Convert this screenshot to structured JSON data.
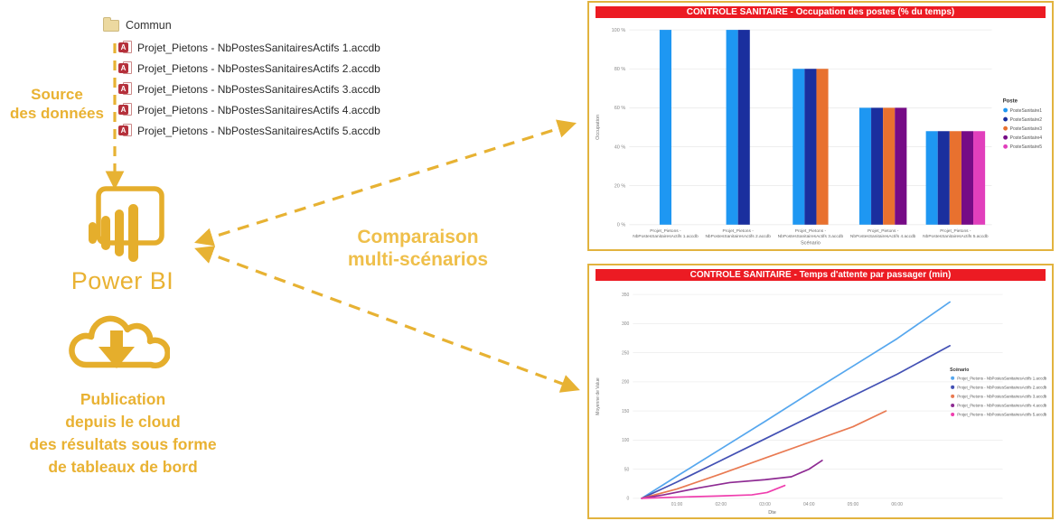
{
  "accent_color": "#E9B233",
  "title_bar_color": "#EC1B23",
  "diagram": {
    "source_label_lines": [
      "Source",
      "des données"
    ],
    "folder_name": "Commun",
    "files": [
      "Projet_Pietons - NbPostesSanitairesActifs 1.accdb",
      "Projet_Pietons - NbPostesSanitairesActifs 2.accdb",
      "Projet_Pietons - NbPostesSanitairesActifs 3.accdb",
      "Projet_Pietons - NbPostesSanitairesActifs 4.accdb",
      "Projet_Pietons - NbPostesSanitairesActifs 5.accdb"
    ],
    "power_bi_label": "Power BI",
    "comparison_lines": [
      "Comparaison",
      "multi-scénarios"
    ],
    "publication_lines": [
      "Publication",
      "depuis le cloud",
      "des résultats sous forme",
      "de tableaux de bord"
    ]
  },
  "chart_data": [
    {
      "type": "bar",
      "title": "CONTROLE SANITAIRE - Occupation des postes (% du temps)",
      "xlabel": "Scénario",
      "ylabel": "Occupation",
      "ylim": [
        0,
        100
      ],
      "ytick_values": [
        0,
        20,
        40,
        60,
        80,
        100
      ],
      "ytick_labels": [
        "0 %",
        "20 %",
        "40 %",
        "60 %",
        "80 %",
        "100 %"
      ],
      "grid": true,
      "legend_position": "right",
      "legend_title": "Poste",
      "categories": [
        [
          "Projet_Pietons -",
          "NbPostesSanitairesActifs 1.accdb"
        ],
        [
          "Projet_Pietons -",
          "NbPostesSanitairesActifs 2.accdb"
        ],
        [
          "Projet_Pietons -",
          "NbPostesSanitairesActifs 3.accdb"
        ],
        [
          "Projet_Pietons -",
          "NbPostesSanitairesActifs 4.accdb"
        ],
        [
          "Projet_Pietons -",
          "NbPostesSanitairesActifs 5.accdb"
        ]
      ],
      "series": [
        {
          "name": "PosteSanitaire1",
          "color": "#1E97F2",
          "values": [
            100,
            100,
            80,
            60,
            48
          ]
        },
        {
          "name": "PosteSanitaire2",
          "color": "#1A2F9E",
          "values": [
            null,
            100,
            80,
            60,
            48
          ]
        },
        {
          "name": "PosteSanitaire3",
          "color": "#E8712F",
          "values": [
            null,
            null,
            80,
            60,
            48
          ]
        },
        {
          "name": "PosteSanitaire4",
          "color": "#760B86",
          "values": [
            null,
            null,
            null,
            60,
            48
          ]
        },
        {
          "name": "PosteSanitaire5",
          "color": "#E13FBC",
          "values": [
            null,
            null,
            null,
            null,
            48
          ]
        }
      ]
    },
    {
      "type": "line",
      "title": "CONTROLE SANITAIRE - Temps d'attente par passager (min)",
      "xlabel": "Dte",
      "ylabel": "Moyenne de Value",
      "ylim": [
        0,
        350
      ],
      "xlim": [
        0,
        8.4
      ],
      "ytick_values": [
        0,
        50,
        100,
        150,
        200,
        250,
        300,
        350
      ],
      "ytick_labels": [
        "0",
        "50",
        "100",
        "150",
        "200",
        "250",
        "300",
        "350"
      ],
      "xticks": [
        {
          "h": 1,
          "label": "01:00"
        },
        {
          "h": 2,
          "label": "02:00"
        },
        {
          "h": 3,
          "label": "03:00"
        },
        {
          "h": 4,
          "label": "04:00"
        },
        {
          "h": 5,
          "label": "05:00"
        },
        {
          "h": 6,
          "label": "06:00"
        }
      ],
      "grid": true,
      "legend_position": "right",
      "legend_title": "Scénario",
      "series": [
        {
          "name": "Projet_Pietons - NbPostesSanitairesActifs 1.accdb",
          "color": "#56A7EE",
          "points": [
            [
              0.2,
              0
            ],
            [
              1,
              38
            ],
            [
              2,
              85
            ],
            [
              3,
              132
            ],
            [
              4,
              180
            ],
            [
              5,
              227
            ],
            [
              6,
              274
            ],
            [
              7.2,
              337
            ]
          ]
        },
        {
          "name": "Projet_Pietons - NbPostesSanitairesActifs 2.accdb",
          "color": "#4351B4",
          "points": [
            [
              0.2,
              0
            ],
            [
              1,
              28
            ],
            [
              2,
              65
            ],
            [
              3,
              102
            ],
            [
              4,
              139
            ],
            [
              5,
              176
            ],
            [
              6,
              213
            ],
            [
              7.2,
              262
            ]
          ]
        },
        {
          "name": "Projet_Pietons - NbPostesSanitairesActifs 3.accdb",
          "color": "#E97A52",
          "points": [
            [
              0.2,
              0
            ],
            [
              1,
              16
            ],
            [
              2,
              42
            ],
            [
              3,
              69
            ],
            [
              4,
              96
            ],
            [
              5,
              123
            ],
            [
              5.75,
              150
            ]
          ]
        },
        {
          "name": "Projet_Pietons - NbPostesSanitairesActifs 4.accdb",
          "color": "#8E2B93",
          "points": [
            [
              0.2,
              0
            ],
            [
              0.7,
              6
            ],
            [
              1.5,
              18
            ],
            [
              2.2,
              27
            ],
            [
              3,
              32
            ],
            [
              3.6,
              37
            ],
            [
              4,
              50
            ],
            [
              4.3,
              65
            ]
          ]
        },
        {
          "name": "Projet_Pietons - NbPostesSanitairesActifs 5.accdb",
          "color": "#EF3FAE",
          "points": [
            [
              0.2,
              0
            ],
            [
              1,
              2
            ],
            [
              2,
              4
            ],
            [
              2.7,
              6
            ],
            [
              3.05,
              10
            ],
            [
              3.45,
              22
            ]
          ]
        }
      ]
    }
  ]
}
